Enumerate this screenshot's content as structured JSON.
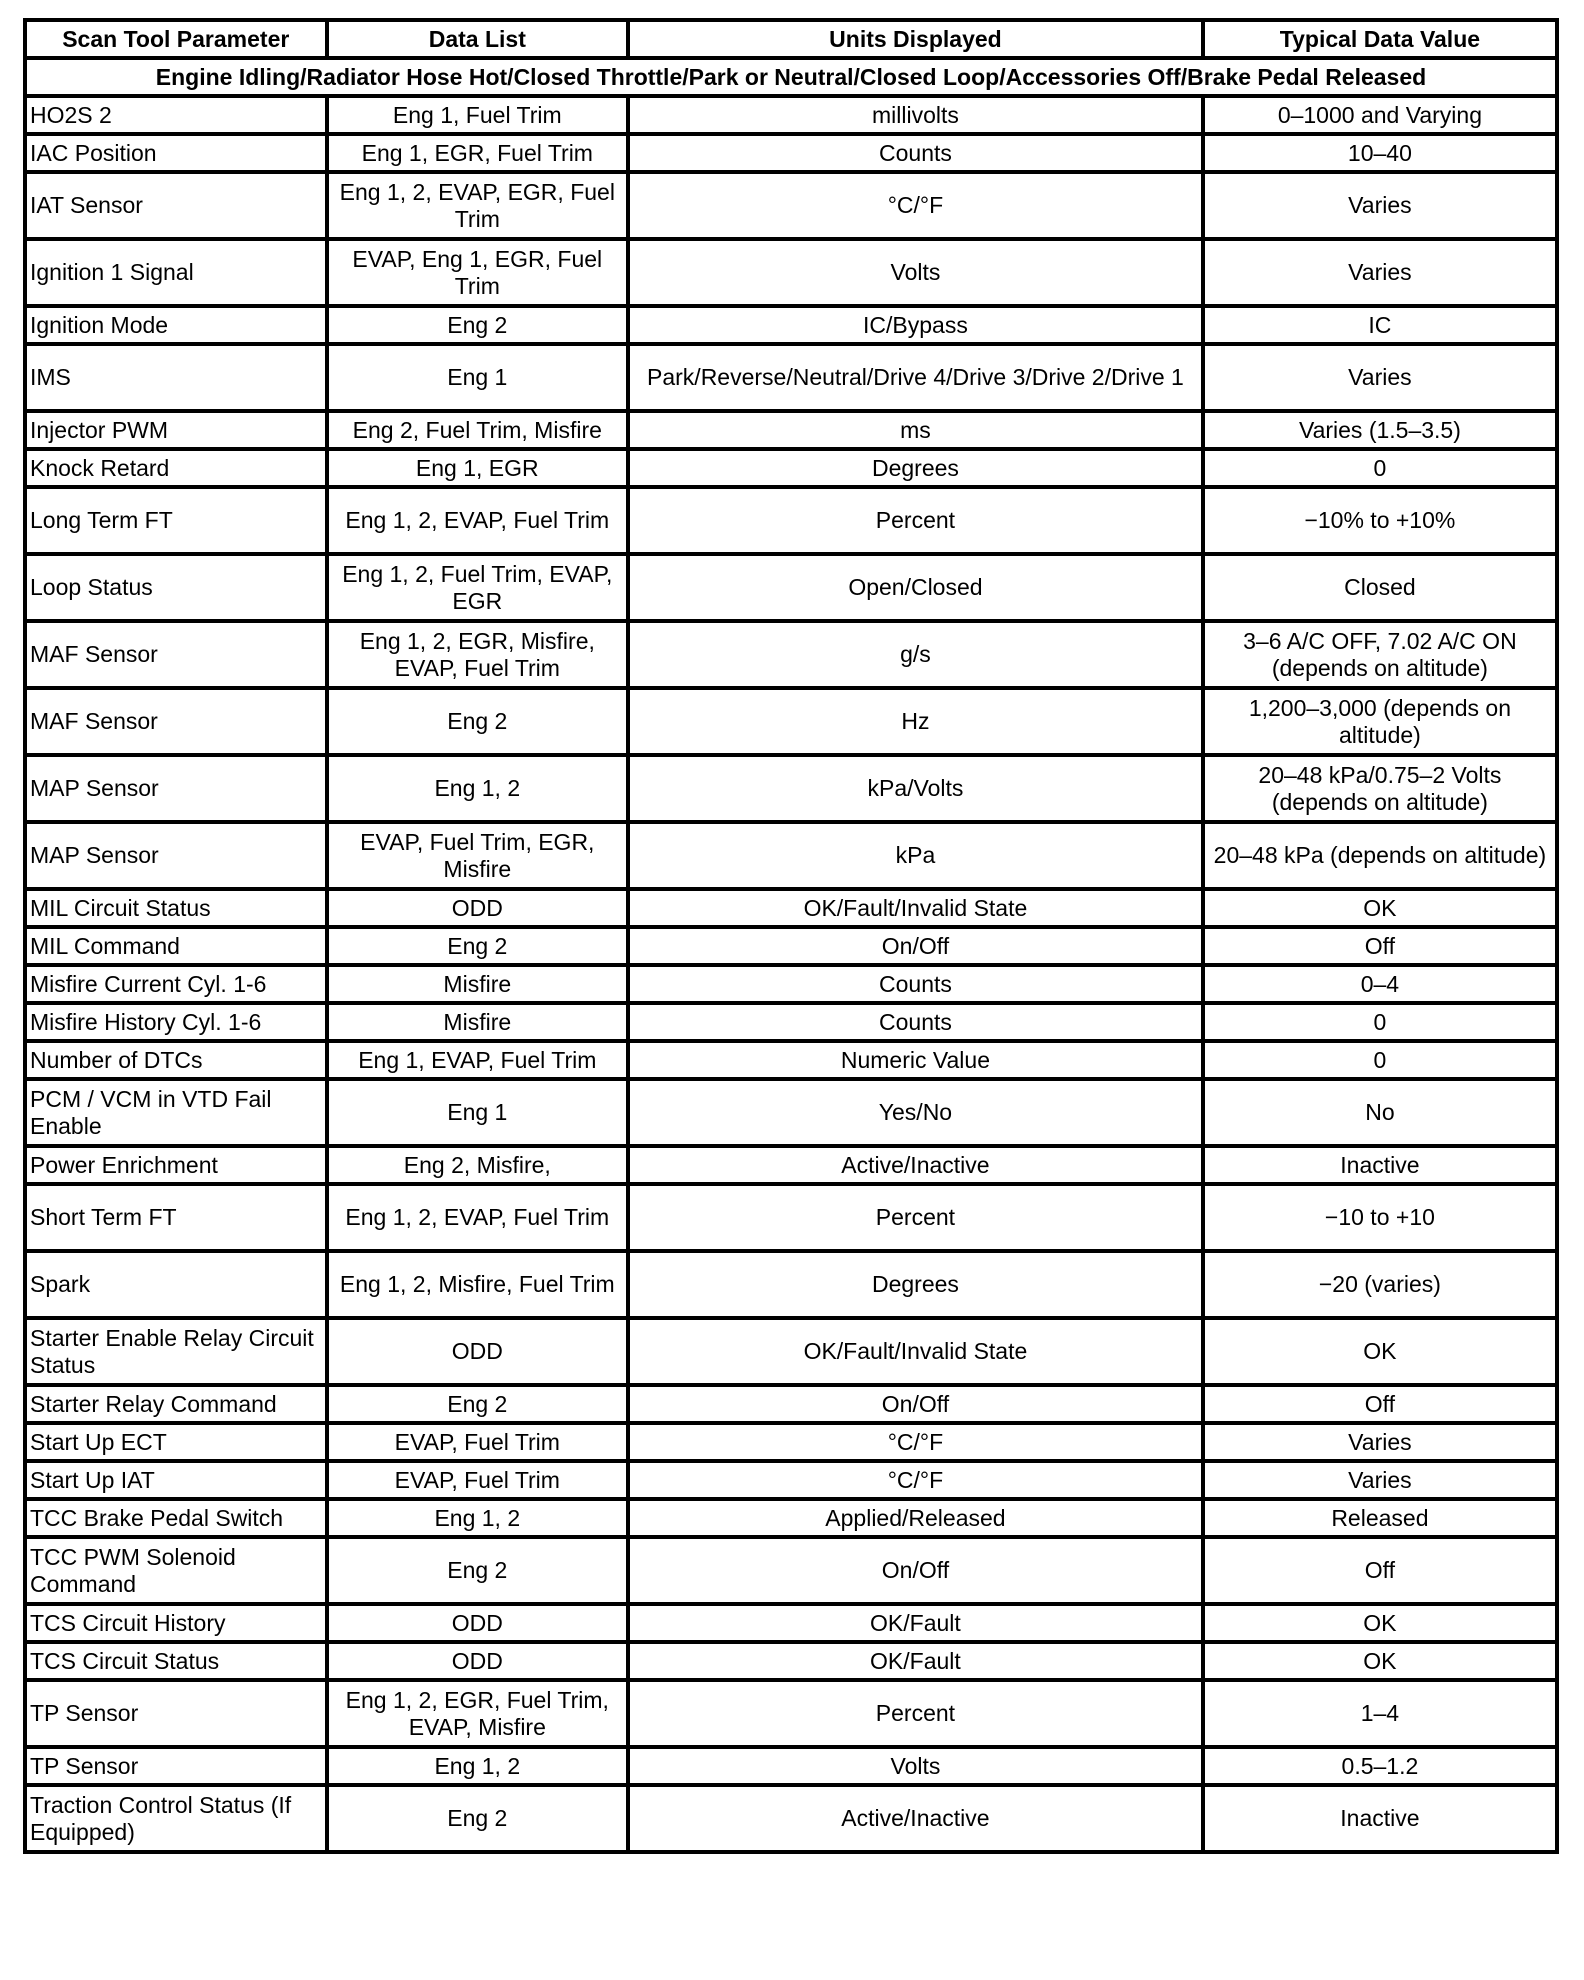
{
  "headers": [
    "Scan Tool Parameter",
    "Data List",
    "Units Displayed",
    "Typical Data Value"
  ],
  "condition": "Engine Idling/Radiator Hose Hot/Closed Throttle/Park or Neutral/Closed Loop/Accessories Off/Brake Pedal Released",
  "rows": [
    [
      "HO2S 2",
      "Eng 1, Fuel Trim",
      "millivolts",
      "0–1000 and Varying"
    ],
    [
      "IAC Position",
      "Eng 1, EGR, Fuel Trim",
      "Counts",
      "10–40"
    ],
    [
      "IAT Sensor",
      "Eng 1, 2, EVAP, EGR, Fuel Trim",
      "°C/°F",
      "Varies"
    ],
    [
      "Ignition 1 Signal",
      "EVAP, Eng 1, EGR, Fuel Trim",
      "Volts",
      "Varies"
    ],
    [
      "Ignition Mode",
      "Eng 2",
      "IC/Bypass",
      "IC"
    ],
    [
      "IMS",
      "Eng 1",
      "Park/Reverse/Neutral/Drive 4/Drive 3/Drive 2/Drive 1",
      "Varies"
    ],
    [
      "Injector PWM",
      "Eng 2, Fuel Trim, Misfire",
      "ms",
      "Varies (1.5–3.5)"
    ],
    [
      "Knock Retard",
      "Eng 1, EGR",
      "Degrees",
      "0"
    ],
    [
      "Long Term FT",
      "Eng 1, 2, EVAP, Fuel Trim",
      "Percent",
      "−10% to +10%"
    ],
    [
      "Loop Status",
      "Eng 1, 2, Fuel Trim, EVAP, EGR",
      "Open/Closed",
      "Closed"
    ],
    [
      "MAF Sensor",
      "Eng 1, 2, EGR, Misfire, EVAP, Fuel Trim",
      "g/s",
      "3–6 A/C OFF, 7.02 A/C ON (depends on altitude)"
    ],
    [
      "MAF Sensor",
      "Eng 2",
      "Hz",
      "1,200–3,000 (depends on altitude)"
    ],
    [
      "MAP Sensor",
      "Eng 1, 2",
      "kPa/Volts",
      "20–48 kPa/0.75–2 Volts (depends on altitude)"
    ],
    [
      "MAP Sensor",
      "EVAP, Fuel Trim, EGR, Misfire",
      "kPa",
      "20–48 kPa (depends on altitude)"
    ],
    [
      "MIL Circuit Status",
      "ODD",
      "OK/Fault/Invalid State",
      "OK"
    ],
    [
      "MIL Command",
      "Eng 2",
      "On/Off",
      "Off"
    ],
    [
      "Misfire Current Cyl. 1-6",
      "Misfire",
      "Counts",
      "0–4"
    ],
    [
      "Misfire History Cyl. 1-6",
      "Misfire",
      "Counts",
      "0"
    ],
    [
      "Number of DTCs",
      "Eng 1, EVAP, Fuel Trim",
      "Numeric Value",
      "0"
    ],
    [
      "PCM / VCM in VTD Fail Enable",
      "Eng 1",
      "Yes/No",
      "No"
    ],
    [
      "Power Enrichment",
      "Eng 2, Misfire,",
      "Active/Inactive",
      "Inactive"
    ],
    [
      "Short Term FT",
      "Eng 1, 2, EVAP, Fuel Trim",
      "Percent",
      "−10 to +10"
    ],
    [
      "Spark",
      "Eng 1, 2, Misfire, Fuel Trim",
      "Degrees",
      "−20 (varies)"
    ],
    [
      "Starter Enable Relay Circuit Status",
      "ODD",
      "OK/Fault/Invalid State",
      "OK"
    ],
    [
      "Starter Relay Command",
      "Eng 2",
      "On/Off",
      "Off"
    ],
    [
      "Start Up ECT",
      "EVAP, Fuel Trim",
      "°C/°F",
      "Varies"
    ],
    [
      "Start Up IAT",
      "EVAP, Fuel Trim",
      "°C/°F",
      "Varies"
    ],
    [
      "TCC Brake Pedal Switch",
      "Eng 1, 2",
      "Applied/Released",
      "Released"
    ],
    [
      "TCC PWM Solenoid Command",
      "Eng 2",
      "On/Off",
      "Off"
    ],
    [
      "TCS Circuit History",
      "ODD",
      "OK/Fault",
      "OK"
    ],
    [
      "TCS Circuit Status",
      "ODD",
      "OK/Fault",
      "OK"
    ],
    [
      "TP Sensor",
      "Eng 1, 2, EGR, Fuel Trim, EVAP, Misfire",
      "Percent",
      "1–4"
    ],
    [
      "TP Sensor",
      "Eng 1, 2",
      "Volts",
      "0.5–1.2"
    ],
    [
      "Traction Control Status (If Equipped)",
      "Eng 2",
      "Active/Inactive",
      "Inactive"
    ]
  ]
}
